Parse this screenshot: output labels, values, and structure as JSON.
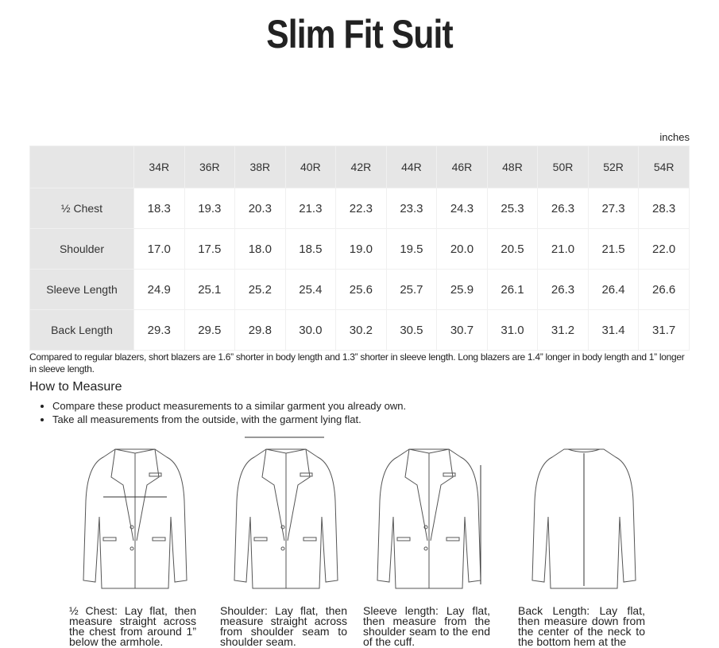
{
  "title": "Slim Fit Suit",
  "unit": "inches",
  "table": {
    "sizes": [
      "34R",
      "36R",
      "38R",
      "40R",
      "42R",
      "44R",
      "46R",
      "48R",
      "50R",
      "52R",
      "54R"
    ],
    "rows": [
      {
        "label": "½ Chest",
        "values": [
          "18.3",
          "19.3",
          "20.3",
          "21.3",
          "22.3",
          "23.3",
          "24.3",
          "25.3",
          "26.3",
          "27.3",
          "28.3"
        ]
      },
      {
        "label": "Shoulder",
        "values": [
          "17.0",
          "17.5",
          "18.0",
          "18.5",
          "19.0",
          "19.5",
          "20.0",
          "20.5",
          "21.0",
          "21.5",
          "22.0"
        ]
      },
      {
        "label": "Sleeve Length",
        "values": [
          "24.9",
          "25.1",
          "25.2",
          "25.4",
          "25.6",
          "25.7",
          "25.9",
          "26.1",
          "26.3",
          "26.4",
          "26.6"
        ]
      },
      {
        "label": "Back Length",
        "values": [
          "29.3",
          "29.5",
          "29.8",
          "30.0",
          "30.2",
          "30.5",
          "30.7",
          "31.0",
          "31.2",
          "31.4",
          "31.7"
        ]
      }
    ]
  },
  "note": "Compared to regular blazers, short blazers are 1.6”  shorter in body length and 1.3”  shorter in sleeve length. Long blazers are 1.4”  longer in body length and 1”  longer in sleeve length.",
  "how_to": {
    "heading": "How to Measure",
    "bullets": [
      "Compare these product measurements to a similar garment you already own.",
      "Take all measurements from the outside, with the garment lying flat."
    ]
  },
  "captions": [
    "½ Chest: Lay flat, then measure straight across the chest from around 1” below the armhole.",
    "Shoulder: Lay flat, then measure straight across from shoulder seam to shoulder seam.",
    "Sleeve length: Lay flat, then measure from the shoulder seam to the end of the cuff.",
    "Back Length: Lay flat, then measure down from the center of the neck to the bottom hem at the"
  ]
}
